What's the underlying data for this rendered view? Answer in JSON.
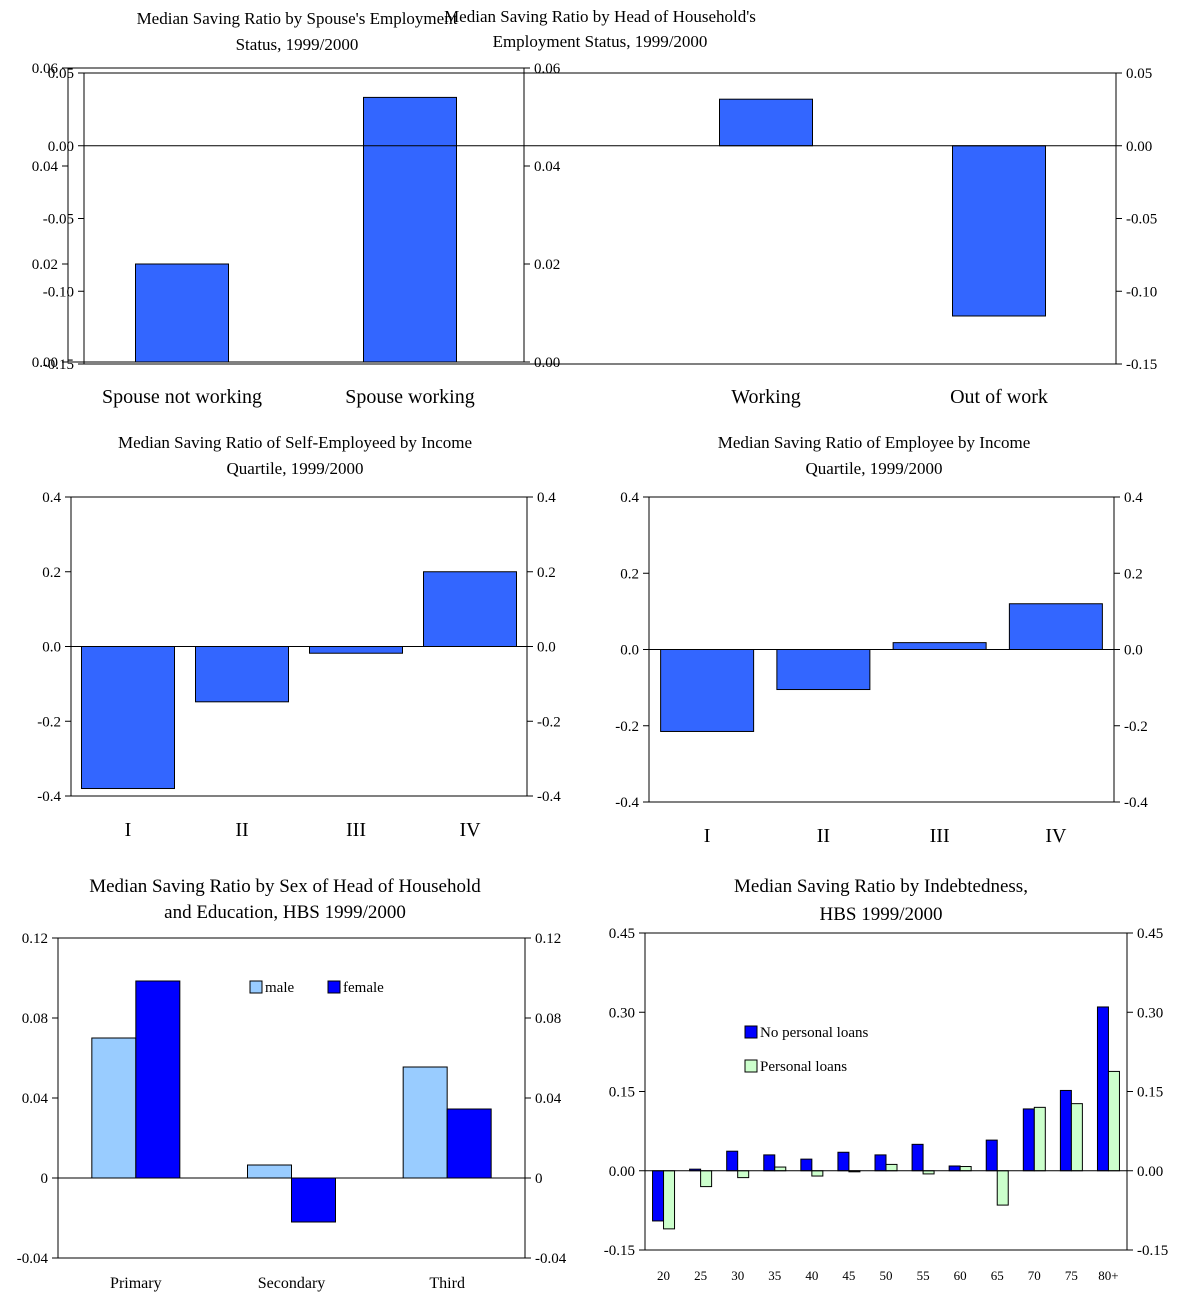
{
  "chart_data": [
    {
      "type": "bar",
      "title": "Median Saving Ratio by Spouse's Employment Status, 1999/2000",
      "title_lines": [
        "Median Saving Ratio by Spouse's Employment",
        "Status, 1999/2000"
      ],
      "categories": [
        "Spouse not working",
        "Spouse working"
      ],
      "series": [
        {
          "values": [
            0.02,
            0.054
          ]
        }
      ],
      "ylim": [
        0,
        0.06
      ],
      "yticks": [
        "0.00",
        "0.02",
        "0.04",
        "0.06"
      ],
      "grid": false,
      "colors": [
        "#3366FF"
      ]
    },
    {
      "type": "bar",
      "title": "Median Saving Ratio by Head of Household's Employment Status, 1999/2000",
      "title_lines": [
        "Median Saving Ratio by Head of Household's",
        "Employment Status, 1999/2000"
      ],
      "categories": [
        "Working",
        "Out of work"
      ],
      "series": [
        {
          "values": [
            0.032,
            -0.117
          ]
        }
      ],
      "ylim": [
        -0.15,
        0.05
      ],
      "yticks": [
        "-0.15",
        "-0.10",
        "-0.05",
        "0.00",
        "0.05"
      ],
      "grid": false,
      "colors": [
        "#3366FF"
      ]
    },
    {
      "type": "bar",
      "title": "Median Saving Ratio of Self-Employeed by Income Quartile, 1999/2000",
      "title_lines": [
        "Median Saving Ratio of Self-Employeed by Income",
        "Quartile, 1999/2000"
      ],
      "categories": [
        "I",
        "II",
        "III",
        "IV"
      ],
      "series": [
        {
          "values": [
            -0.38,
            -0.148,
            -0.018,
            0.2
          ]
        }
      ],
      "ylim": [
        -0.4,
        0.4
      ],
      "yticks": [
        "-0.4",
        "-0.2",
        "0.0",
        "0.2",
        "0.4"
      ],
      "grid": false,
      "colors": [
        "#3366FF"
      ]
    },
    {
      "type": "bar",
      "title": "Median Saving Ratio of Employee by Income Quartile, 1999/2000",
      "title_lines": [
        "Median Saving Ratio of Employee by Income",
        "Quartile, 1999/2000"
      ],
      "categories": [
        "I",
        "II",
        "III",
        "IV"
      ],
      "series": [
        {
          "values": [
            -0.215,
            -0.105,
            0.018,
            0.12
          ]
        }
      ],
      "ylim": [
        -0.4,
        0.4
      ],
      "yticks": [
        "-0.4",
        "-0.2",
        "0.0",
        "0.2",
        "0.4"
      ],
      "grid": false,
      "colors": [
        "#3366FF"
      ]
    },
    {
      "type": "bar",
      "title": "Median Saving Ratio by Sex of Head of Household and Education, HBS 1999/2000",
      "title_lines": [
        "Median Saving Ratio by Sex of Head of Household",
        "and Education, HBS 1999/2000"
      ],
      "categories": [
        "Primary",
        "Secondary",
        "Third"
      ],
      "series": [
        {
          "name": "male",
          "values": [
            0.07,
            0.0065,
            0.0555
          ]
        },
        {
          "name": "female",
          "values": [
            0.0985,
            -0.022,
            0.0345
          ]
        }
      ],
      "ylim": [
        -0.04,
        0.12
      ],
      "yticks": [
        "-0.04",
        "0",
        "0.04",
        "0.08",
        "0.12"
      ],
      "grid": false,
      "legend": "top-center",
      "colors": [
        "#99CCFF",
        "#0000FF"
      ]
    },
    {
      "type": "bar",
      "title": "Median Saving Ratio by Indebtedness, HBS 1999/2000",
      "title_lines": [
        "Median Saving Ratio by Indebtedness,",
        "HBS 1999/2000"
      ],
      "categories": [
        "20",
        "25",
        "30",
        "35",
        "40",
        "45",
        "50",
        "55",
        "60",
        "65",
        "70",
        "75",
        "80+"
      ],
      "series": [
        {
          "name": "No personal loans",
          "values": [
            -0.095,
            0.003,
            0.037,
            0.03,
            0.022,
            0.035,
            0.03,
            0.05,
            0.009,
            0.058,
            0.117,
            0.152,
            0.31
          ]
        },
        {
          "name": "Personal loans",
          "values": [
            -0.11,
            -0.03,
            -0.013,
            0.007,
            -0.01,
            -0.002,
            0.012,
            -0.006,
            0.008,
            -0.065,
            0.12,
            0.127,
            0.188
          ]
        }
      ],
      "ylim": [
        -0.15,
        0.45
      ],
      "yticks": [
        "-0.15",
        "0.00",
        "0.15",
        "0.30",
        "0.45"
      ],
      "grid": false,
      "legend": "upper-left",
      "colors": [
        "#0000FF",
        "#CCFFCC"
      ]
    }
  ]
}
